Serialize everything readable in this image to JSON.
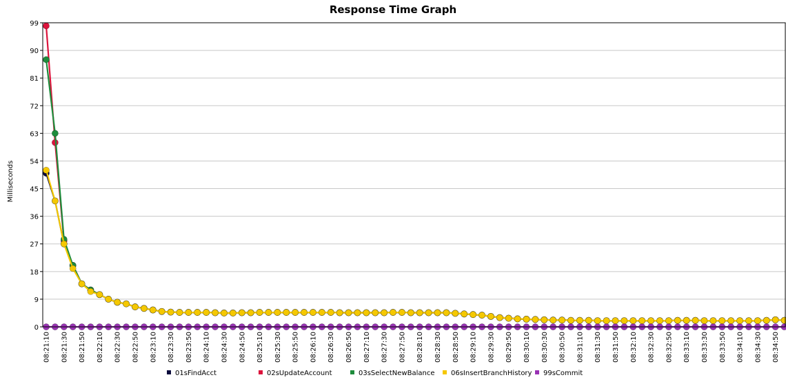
{
  "chart_data": {
    "type": "line",
    "title": "Response Time Graph",
    "ylabel": "Milliseconds",
    "xlabel": "",
    "ylim": [
      0,
      99
    ],
    "y_ticks": [
      0,
      9,
      18,
      27,
      36,
      45,
      54,
      63,
      72,
      81,
      90,
      99
    ],
    "grid": true,
    "legend_position": "bottom",
    "x": [
      "08:21:10",
      "08:21:20",
      "08:21:30",
      "08:21:40",
      "08:21:50",
      "08:22:00",
      "08:22:10",
      "08:22:20",
      "08:22:30",
      "08:22:40",
      "08:22:50",
      "08:23:00",
      "08:23:10",
      "08:23:20",
      "08:23:30",
      "08:23:40",
      "08:23:50",
      "08:24:00",
      "08:24:10",
      "08:24:20",
      "08:24:30",
      "08:24:40",
      "08:24:50",
      "08:25:00",
      "08:25:10",
      "08:25:20",
      "08:25:30",
      "08:25:40",
      "08:25:50",
      "08:26:00",
      "08:26:10",
      "08:26:20",
      "08:26:30",
      "08:26:40",
      "08:26:50",
      "08:27:00",
      "08:27:10",
      "08:27:20",
      "08:27:30",
      "08:27:40",
      "08:27:50",
      "08:28:00",
      "08:28:10",
      "08:28:20",
      "08:28:30",
      "08:28:40",
      "08:28:50",
      "08:29:00",
      "08:29:10",
      "08:29:20",
      "08:29:30",
      "08:29:40",
      "08:29:50",
      "08:30:00",
      "08:30:10",
      "08:30:20",
      "08:30:30",
      "08:30:40",
      "08:30:50",
      "08:31:00",
      "08:31:10",
      "08:31:20",
      "08:31:30",
      "08:31:40",
      "08:31:50",
      "08:32:00",
      "08:32:10",
      "08:32:20",
      "08:32:30",
      "08:32:40",
      "08:32:50",
      "08:33:00",
      "08:33:10",
      "08:33:20",
      "08:33:30",
      "08:33:40",
      "08:33:50",
      "08:34:00",
      "08:34:10",
      "08:34:20",
      "08:34:30",
      "08:34:40",
      "08:34:50",
      "08:35:00"
    ],
    "x_tick_labels": [
      "08:21:10",
      "08:21:30",
      "08:21:50",
      "08:22:10",
      "08:22:30",
      "08:22:50",
      "08:23:10",
      "08:23:30",
      "08:23:50",
      "08:24:10",
      "08:24:30",
      "08:24:50",
      "08:25:10",
      "08:25:30",
      "08:25:50",
      "08:26:10",
      "08:26:30",
      "08:26:50",
      "08:27:10",
      "08:27:30",
      "08:27:50",
      "08:28:10",
      "08:28:30",
      "08:28:50",
      "08:29:10",
      "08:29:30",
      "08:29:50",
      "08:30:10",
      "08:30:30",
      "08:30:50",
      "08:31:10",
      "08:31:30",
      "08:31:50",
      "08:32:10",
      "08:32:30",
      "08:32:50",
      "08:33:10",
      "08:33:30",
      "08:33:50",
      "08:34:10",
      "08:34:30",
      "08:34:50"
    ],
    "series": [
      {
        "name": "01sFindAcct",
        "color": "#0a0a3c",
        "values": [
          50,
          41,
          27,
          20,
          14,
          12,
          10.5,
          9,
          8,
          7.5,
          6.5,
          6,
          5.5,
          5,
          4.8,
          4.7,
          4.7,
          4.7,
          4.7,
          4.6,
          4.5,
          4.5,
          4.6,
          4.6,
          4.7,
          4.7,
          4.7,
          4.7,
          4.7,
          4.7,
          4.7,
          4.7,
          4.7,
          4.6,
          4.6,
          4.6,
          4.6,
          4.6,
          4.6,
          4.7,
          4.7,
          4.6,
          4.6,
          4.6,
          4.6,
          4.6,
          4.4,
          4.2,
          4,
          3.8,
          3.4,
          3,
          2.8,
          2.6,
          2.5,
          2.4,
          2.3,
          2.2,
          2.2,
          2.1,
          2.1,
          2.1,
          2,
          2,
          2,
          2,
          2,
          2,
          2,
          2,
          2,
          2.1,
          2.1,
          2.1,
          2,
          2,
          2,
          2,
          2,
          2,
          2,
          2.1,
          2.3,
          2.1
        ]
      },
      {
        "name": "02sUpdateAccount",
        "color": "#dc143c",
        "values": [
          98,
          60,
          28,
          20,
          14,
          12,
          10.5,
          9,
          8,
          7.5,
          6.5,
          6,
          5.5,
          5,
          4.8,
          4.7,
          4.7,
          4.7,
          4.7,
          4.6,
          4.5,
          4.5,
          4.6,
          4.6,
          4.7,
          4.7,
          4.7,
          4.7,
          4.7,
          4.7,
          4.7,
          4.7,
          4.7,
          4.6,
          4.6,
          4.6,
          4.6,
          4.6,
          4.6,
          4.7,
          4.7,
          4.6,
          4.6,
          4.6,
          4.6,
          4.6,
          4.4,
          4.2,
          4,
          3.8,
          3.4,
          3,
          2.8,
          2.6,
          2.5,
          2.4,
          2.3,
          2.2,
          2.2,
          2.1,
          2.1,
          2.1,
          2,
          2,
          2,
          2,
          2,
          2,
          2,
          2,
          2,
          2.1,
          2.1,
          2.1,
          2,
          2,
          2,
          2,
          2,
          2,
          2,
          2.1,
          2.3,
          2.1
        ]
      },
      {
        "name": "03sSelectNewBalance",
        "color": "#1e8c3c",
        "values": [
          87,
          63,
          28.5,
          20,
          14,
          12,
          10.5,
          9,
          8,
          7.5,
          6.5,
          6,
          5.5,
          5,
          4.8,
          4.7,
          4.7,
          4.7,
          4.7,
          4.6,
          4.5,
          4.5,
          4.6,
          4.6,
          4.7,
          4.7,
          4.7,
          4.7,
          4.7,
          4.7,
          4.7,
          4.7,
          4.7,
          4.6,
          4.6,
          4.6,
          4.6,
          4.6,
          4.6,
          4.7,
          4.7,
          4.6,
          4.6,
          4.6,
          4.6,
          4.6,
          4.4,
          4.2,
          4,
          3.8,
          3.4,
          3,
          2.8,
          2.6,
          2.5,
          2.4,
          2.3,
          2.2,
          2.2,
          2.1,
          2.1,
          2.1,
          2,
          2,
          2,
          2,
          2,
          2,
          2,
          2,
          2,
          2.1,
          2.1,
          2.1,
          2,
          2,
          2,
          2,
          2,
          2,
          2,
          2.1,
          2.3,
          2.1
        ]
      },
      {
        "name": "06sInsertBranchHistory",
        "color": "#f5c800",
        "values": [
          51,
          41,
          27,
          19,
          14,
          11.5,
          10.5,
          9,
          8,
          7.5,
          6.5,
          6,
          5.5,
          5,
          4.8,
          4.7,
          4.7,
          4.7,
          4.7,
          4.6,
          4.5,
          4.5,
          4.6,
          4.6,
          4.7,
          4.7,
          4.7,
          4.7,
          4.7,
          4.7,
          4.7,
          4.7,
          4.7,
          4.6,
          4.6,
          4.6,
          4.6,
          4.6,
          4.6,
          4.7,
          4.7,
          4.6,
          4.6,
          4.6,
          4.6,
          4.6,
          4.4,
          4.2,
          4,
          3.8,
          3.4,
          3,
          2.8,
          2.6,
          2.5,
          2.4,
          2.3,
          2.2,
          2.2,
          2.1,
          2.1,
          2.1,
          2,
          2,
          2,
          2,
          2,
          2,
          2,
          2,
          2,
          2.1,
          2.1,
          2.1,
          2,
          2,
          2,
          2,
          2,
          2,
          2,
          2.1,
          2.3,
          2.1
        ]
      },
      {
        "name": "99sCommit",
        "color": "#9932b4",
        "values": [
          0,
          0,
          0,
          0,
          0,
          0,
          0,
          0,
          0,
          0,
          0,
          0,
          0,
          0,
          0,
          0,
          0,
          0,
          0,
          0,
          0,
          0,
          0,
          0,
          0,
          0,
          0,
          0,
          0,
          0,
          0,
          0,
          0,
          0,
          0,
          0,
          0,
          0,
          0,
          0,
          0,
          0,
          0,
          0,
          0,
          0,
          0,
          0,
          0,
          0,
          0,
          0,
          0,
          0,
          0,
          0,
          0,
          0,
          0,
          0,
          0,
          0,
          0,
          0,
          0,
          0,
          0,
          0,
          0,
          0,
          0,
          0,
          0,
          0,
          0,
          0,
          0,
          0,
          0,
          0,
          0,
          0,
          0,
          0
        ]
      }
    ]
  }
}
